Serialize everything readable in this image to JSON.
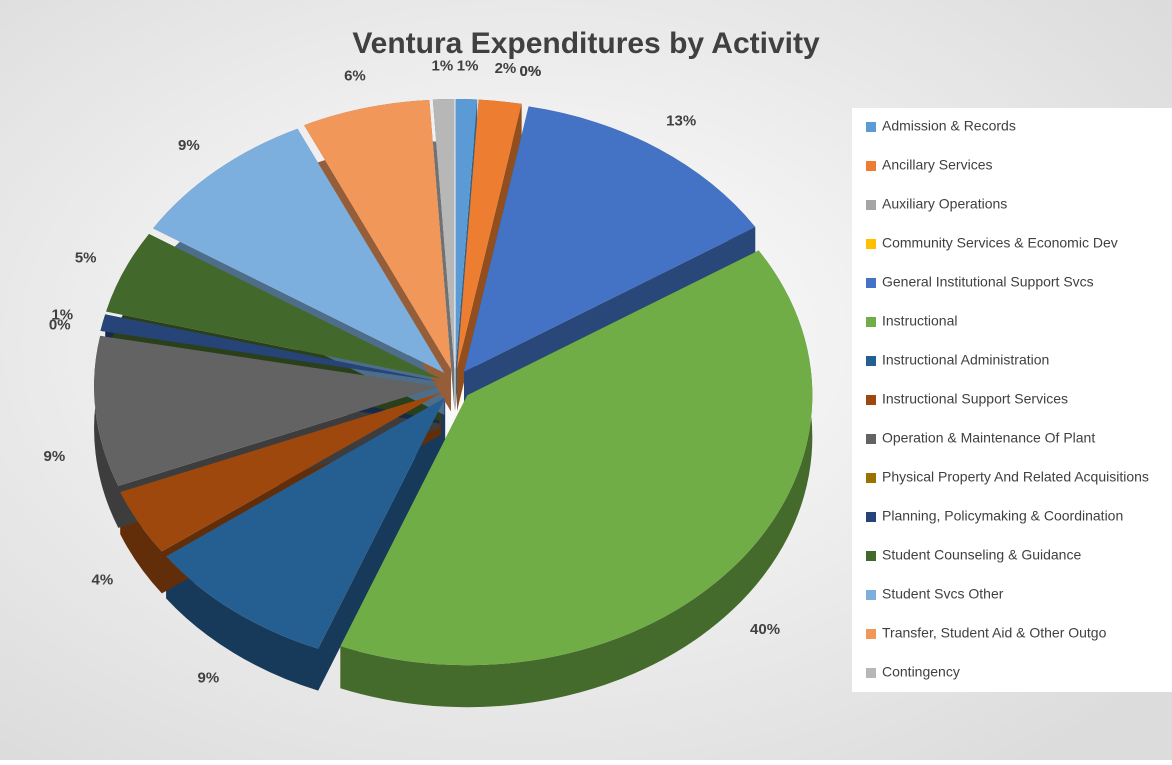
{
  "chart_data": {
    "type": "pie",
    "title": "Ventura Expenditures by Activity",
    "categories": [
      "Admission & Records",
      "Ancillary Services",
      "Auxiliary Operations",
      "Community Services & Economic Dev",
      "General Institutional Support Svcs",
      "Instructional",
      "Instructional Administration",
      "Instructional Support Services",
      "Operation & Maintenance Of Plant",
      "Physical Property And Related Acquisitions",
      "Planning, Policymaking & Coordination",
      "Student Counseling & Guidance",
      "Student Svcs Other",
      "Transfer, Student Aid & Other Outgo",
      "Contingency"
    ],
    "values": [
      1,
      2,
      0,
      0,
      13,
      40,
      9,
      4,
      9,
      0,
      1,
      5,
      9,
      6,
      1
    ],
    "value_labels": [
      "1%",
      "2%",
      "0%",
      "0%",
      "13%",
      "40%",
      "9%",
      "4%",
      "9%",
      "0%",
      "1%",
      "5%",
      "9%",
      "6%",
      "1%"
    ],
    "colors": [
      "#5b9bd5",
      "#ed7d31",
      "#a5a5a5",
      "#ffc000",
      "#4472c4",
      "#70ad47",
      "#255e91",
      "#9e480e",
      "#636363",
      "#997300",
      "#264478",
      "#43682b",
      "#7cafdd",
      "#f1975a",
      "#b7b7b7"
    ],
    "legend": "right"
  }
}
